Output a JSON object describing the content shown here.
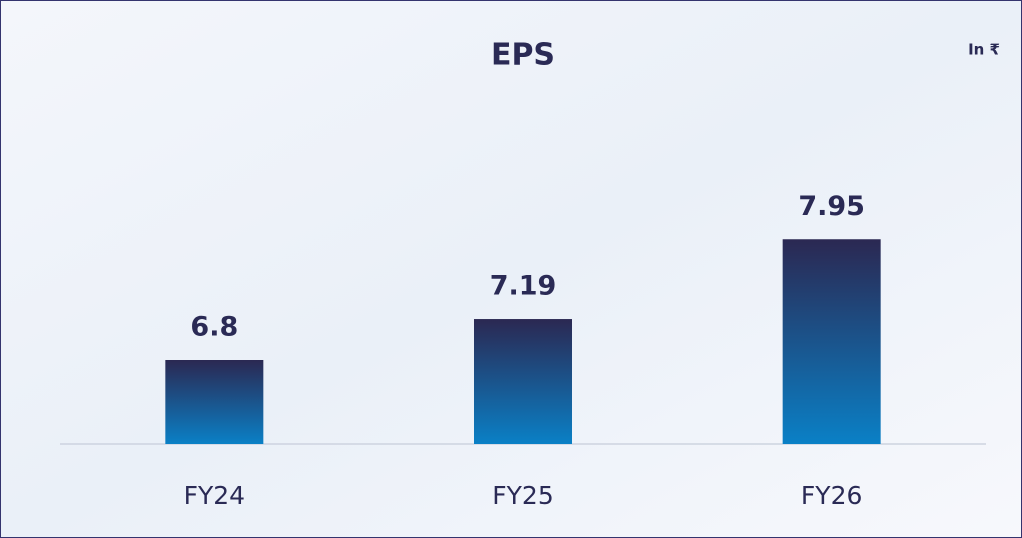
{
  "chart_data": {
    "type": "bar",
    "title": "EPS",
    "unit_label": "In ₹",
    "categories": [
      "FY24",
      "FY25",
      "FY26"
    ],
    "values": [
      6.8,
      7.19,
      7.95
    ],
    "gradient": [
      "#2b2852",
      "#0a80c6"
    ],
    "ylim": [
      6,
      8
    ]
  }
}
